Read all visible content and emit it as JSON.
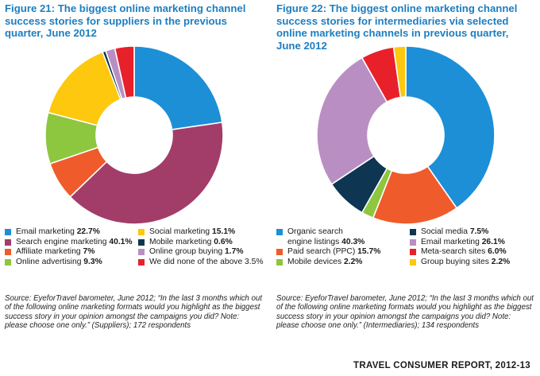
{
  "figures": [
    {
      "number": "Figure 21:",
      "title": "The biggest online marketing channel success stories for suppliers in the previous quarter, June 2012",
      "source": "Source: EyeforTravel barometer, June 2012; “In the last 3 months which out of the following online marketing formats would you highlight as the biggest success story in your opinion amongst the campaigns you did? Note: please choose one only.” (Suppliers); 172 respondents",
      "legend": [
        {
          "label": "Email marketing",
          "value": "22.7%",
          "color": "#1c8fd6"
        },
        {
          "label": "Search engine marketing",
          "value": "40.1%",
          "color": "#a23d6a"
        },
        {
          "label": "Affiliate marketing",
          "value": "7%",
          "color": "#ef5b2a"
        },
        {
          "label": "Online advertising",
          "value": "9.3%",
          "color": "#8dc63f"
        },
        {
          "label": "Social marketing",
          "value": "15.1%",
          "color": "#fdc80e"
        },
        {
          "label": "Mobile marketing",
          "value": "0.6%",
          "color": "#0e3552"
        },
        {
          "label": "Online group buying",
          "value": "1.7%",
          "color": "#b98fc3"
        },
        {
          "label": "We did none of the above",
          "value": "3.5%",
          "color": "#e8202a"
        }
      ]
    },
    {
      "number": "Figure 22:",
      "title": "The biggest online marketing channel success stories for intermediaries via selected online marketing channels in previous quarter, June 2012",
      "source": "Source: EyeforTravel barometer, June 2012; “In the last 3 months which out of the following online marketing formats would you highlight as the biggest success story in your opinion amongst the campaigns you did? Note: please choose one only.” (Intermediaries); 134 respondents",
      "legend": [
        {
          "label": "Organic search",
          "label2": "engine listings",
          "value": "40.3%",
          "color": "#1c8fd6"
        },
        {
          "label": "Paid search (PPC)",
          "value": "15.7%",
          "color": "#ef5b2a"
        },
        {
          "label": "Mobile devices",
          "value": "2.2%",
          "color": "#8dc63f"
        },
        {
          "label": "Social media",
          "value": "7.5%",
          "color": "#0e3552"
        },
        {
          "label": "Email marketing",
          "value": "26.1%",
          "color": "#b98fc3"
        },
        {
          "label": "Meta-search sites",
          "value": "6.0%",
          "color": "#e8202a"
        },
        {
          "label": "Group buying sites",
          "value": "2.2%",
          "color": "#fdc80e"
        }
      ]
    }
  ],
  "footer": "TRAVEL CONSUMER REPORT, 2012-13",
  "chart_data": [
    {
      "type": "pie",
      "title": "The biggest online marketing channel success stories for suppliers in the previous quarter, June 2012",
      "slices": [
        {
          "label": "Email marketing",
          "value": 22.7,
          "color": "#1c8fd6"
        },
        {
          "label": "Search engine marketing",
          "value": 40.1,
          "color": "#a23d6a"
        },
        {
          "label": "Affiliate marketing",
          "value": 7,
          "color": "#ef5b2a"
        },
        {
          "label": "Online advertising",
          "value": 9.3,
          "color": "#8dc63f"
        },
        {
          "label": "Social marketing",
          "value": 15.1,
          "color": "#fdc80e"
        },
        {
          "label": "Mobile marketing",
          "value": 0.6,
          "color": "#0e3552"
        },
        {
          "label": "Online group buying",
          "value": 1.7,
          "color": "#b98fc3"
        },
        {
          "label": "We did none of the above",
          "value": 3.5,
          "color": "#e8202a"
        }
      ]
    },
    {
      "type": "pie",
      "title": "The biggest online marketing channel success stories for intermediaries via selected online marketing channels in previous quarter, June 2012",
      "slices": [
        {
          "label": "Organic search engine listings",
          "value": 40.3,
          "color": "#1c8fd6"
        },
        {
          "label": "Paid search (PPC)",
          "value": 15.7,
          "color": "#ef5b2a"
        },
        {
          "label": "Mobile devices",
          "value": 2.2,
          "color": "#8dc63f"
        },
        {
          "label": "Social media",
          "value": 7.5,
          "color": "#0e3552"
        },
        {
          "label": "Email marketing",
          "value": 26.1,
          "color": "#b98fc3"
        },
        {
          "label": "Meta-search sites",
          "value": 6.0,
          "color": "#e8202a"
        },
        {
          "label": "Group buying sites",
          "value": 2.2,
          "color": "#fdc80e"
        }
      ]
    }
  ]
}
